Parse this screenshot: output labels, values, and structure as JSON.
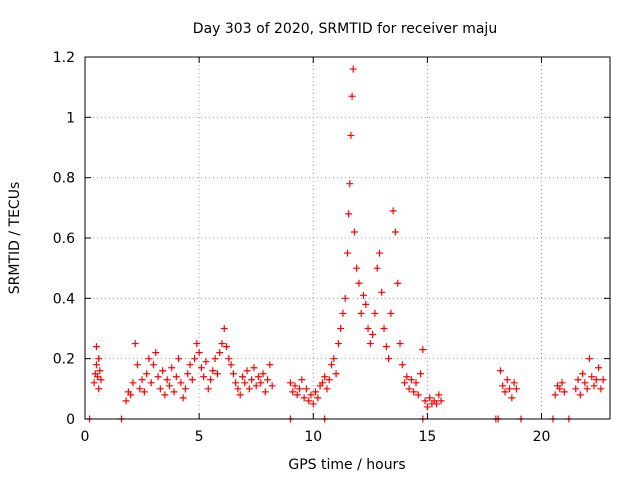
{
  "chart_data": {
    "type": "scatter",
    "title": "Day 303 of 2020, SRMTID for receiver maju",
    "xlabel": "GPS time / hours",
    "ylabel": "SRMTID / TECUs",
    "xlim": [
      0,
      23
    ],
    "ylim": [
      0,
      1.2
    ],
    "xticks": [
      0,
      5,
      10,
      15,
      20
    ],
    "yticks": [
      0,
      0.2,
      0.4,
      0.6,
      0.8,
      1,
      1.2
    ],
    "ytick_labels": [
      "0",
      "0.2",
      "0.4",
      "0.6",
      "0.8",
      "1",
      "1.2"
    ],
    "grid": true,
    "marker": "+",
    "color": "#ff0000",
    "series": [
      {
        "name": "SRMTID",
        "x": [
          0.4,
          0.45,
          0.5,
          0.55,
          0.6,
          0.65,
          0.7,
          0.5,
          0.6,
          1.8,
          1.9,
          2.0,
          2.1,
          2.2,
          2.3,
          2.4,
          2.5,
          2.6,
          2.7,
          2.8,
          2.9,
          3.0,
          3.1,
          3.2,
          3.3,
          3.4,
          3.5,
          3.6,
          3.7,
          3.8,
          3.9,
          4.0,
          4.1,
          4.2,
          4.3,
          4.4,
          4.5,
          4.6,
          4.7,
          4.8,
          4.9,
          5.0,
          5.1,
          5.2,
          5.3,
          5.4,
          5.5,
          5.6,
          5.7,
          5.8,
          5.9,
          6.0,
          6.1,
          6.2,
          6.3,
          6.4,
          6.5,
          6.6,
          6.7,
          6.8,
          6.9,
          7.0,
          7.1,
          7.2,
          7.3,
          7.4,
          7.5,
          7.6,
          7.7,
          7.8,
          7.9,
          8.0,
          8.1,
          8.2,
          9.0,
          9.1,
          9.2,
          9.3,
          9.4,
          9.5,
          9.6,
          9.7,
          9.8,
          9.9,
          10.0,
          10.1,
          10.2,
          10.3,
          10.4,
          10.5,
          10.6,
          10.7,
          10.8,
          10.9,
          11.0,
          11.1,
          11.2,
          11.3,
          11.4,
          11.5,
          11.55,
          11.6,
          11.65,
          11.7,
          11.75,
          11.8,
          11.9,
          12.0,
          12.1,
          12.2,
          12.3,
          12.4,
          12.5,
          12.6,
          12.7,
          12.8,
          12.9,
          13.0,
          13.1,
          13.2,
          13.3,
          13.4,
          13.5,
          13.6,
          13.7,
          13.8,
          13.9,
          14.0,
          14.1,
          14.2,
          14.3,
          14.4,
          14.5,
          14.6,
          14.7,
          14.8,
          14.9,
          15.0,
          15.1,
          15.2,
          15.3,
          15.4,
          15.5,
          15.6,
          18.2,
          18.3,
          18.4,
          18.5,
          18.6,
          18.7,
          18.8,
          18.9,
          20.6,
          20.7,
          20.8,
          20.9,
          21.0,
          21.5,
          21.6,
          21.7,
          21.8,
          21.9,
          22.0,
          22.1,
          22.2,
          22.3,
          22.4,
          22.5,
          22.6,
          22.7,
          0.2,
          1.6,
          9.0,
          10.5,
          14.8,
          18.0,
          18.1,
          19.1,
          20.5,
          21.2
        ],
        "y": [
          0.12,
          0.15,
          0.18,
          0.14,
          0.2,
          0.16,
          0.13,
          0.24,
          0.1,
          0.06,
          0.09,
          0.08,
          0.12,
          0.25,
          0.18,
          0.1,
          0.13,
          0.09,
          0.15,
          0.2,
          0.12,
          0.18,
          0.22,
          0.14,
          0.1,
          0.16,
          0.08,
          0.13,
          0.11,
          0.17,
          0.09,
          0.14,
          0.2,
          0.12,
          0.07,
          0.1,
          0.15,
          0.18,
          0.13,
          0.2,
          0.25,
          0.22,
          0.17,
          0.14,
          0.19,
          0.1,
          0.13,
          0.16,
          0.2,
          0.15,
          0.22,
          0.25,
          0.3,
          0.24,
          0.2,
          0.18,
          0.15,
          0.12,
          0.1,
          0.08,
          0.14,
          0.12,
          0.16,
          0.1,
          0.13,
          0.17,
          0.11,
          0.14,
          0.12,
          0.15,
          0.09,
          0.13,
          0.18,
          0.11,
          0.12,
          0.09,
          0.11,
          0.08,
          0.1,
          0.13,
          0.07,
          0.1,
          0.06,
          0.08,
          0.05,
          0.09,
          0.07,
          0.11,
          0.12,
          0.14,
          0.1,
          0.13,
          0.18,
          0.2,
          0.15,
          0.25,
          0.3,
          0.35,
          0.4,
          0.55,
          0.68,
          0.78,
          0.94,
          1.07,
          1.16,
          0.62,
          0.5,
          0.45,
          0.35,
          0.41,
          0.38,
          0.3,
          0.25,
          0.28,
          0.35,
          0.5,
          0.55,
          0.42,
          0.3,
          0.24,
          0.2,
          0.35,
          0.69,
          0.62,
          0.45,
          0.25,
          0.18,
          0.12,
          0.14,
          0.1,
          0.13,
          0.09,
          0.12,
          0.08,
          0.15,
          0.23,
          0.06,
          0.04,
          0.07,
          0.05,
          0.06,
          0.05,
          0.08,
          0.06,
          0.16,
          0.11,
          0.09,
          0.13,
          0.1,
          0.07,
          0.12,
          0.1,
          0.08,
          0.11,
          0.1,
          0.12,
          0.09,
          0.1,
          0.13,
          0.08,
          0.15,
          0.12,
          0.1,
          0.2,
          0.14,
          0.11,
          0.13,
          0.17,
          0.1,
          0.13,
          0.0,
          0.0,
          0.0,
          0.0,
          0.0,
          0.0,
          0.0,
          0.0,
          0.0,
          0.0
        ]
      }
    ]
  }
}
